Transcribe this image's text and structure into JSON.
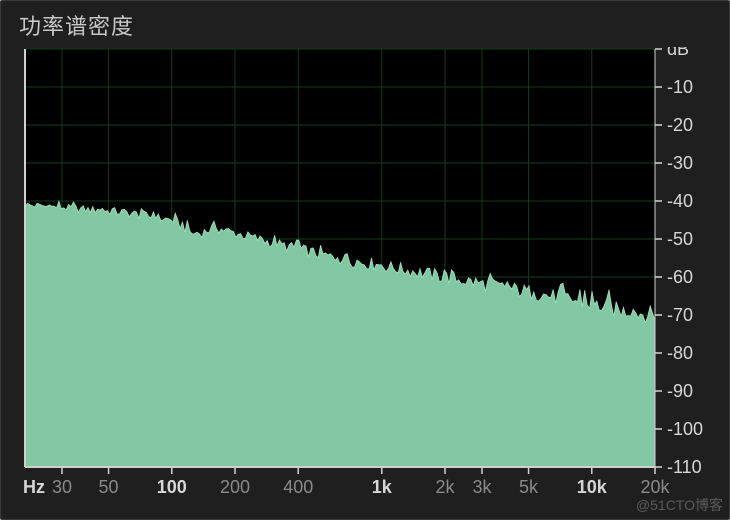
{
  "panel": {
    "title": "功率谱密度",
    "watermark": "@51CTO博客",
    "background_color": "#1f1f1f",
    "border_color": "#3a3a3a",
    "title_color": "#c8c8c8",
    "title_fontsize": 22
  },
  "chart": {
    "type": "power-spectral-density",
    "plot_background": "#000000",
    "outer_background": "#1f1f1f",
    "grid_color": "#0f3d1f",
    "grid_width": 1,
    "axis_line_color": "#d0d0d0",
    "series_fill_color": "#83c8a4",
    "series_line_color": "#9fe0bc",
    "tick_label_color": "#8a8a8a",
    "tick_label_major_color": "#d6d6d6",
    "tick_fontsize": 18,
    "x": {
      "unit_label": "Hz",
      "scale": "log",
      "min_hz": 20,
      "max_hz": 20000,
      "ticks": [
        {
          "hz": 30,
          "label": "30",
          "major": false
        },
        {
          "hz": 50,
          "label": "50",
          "major": false
        },
        {
          "hz": 100,
          "label": "100",
          "major": true
        },
        {
          "hz": 200,
          "label": "200",
          "major": false
        },
        {
          "hz": 400,
          "label": "400",
          "major": false
        },
        {
          "hz": 1000,
          "label": "1k",
          "major": true
        },
        {
          "hz": 2000,
          "label": "2k",
          "major": false
        },
        {
          "hz": 3000,
          "label": "3k",
          "major": false
        },
        {
          "hz": 5000,
          "label": "5k",
          "major": false
        },
        {
          "hz": 10000,
          "label": "10k",
          "major": true
        },
        {
          "hz": 20000,
          "label": "20k",
          "major": false
        }
      ]
    },
    "y": {
      "unit_label": "dB",
      "scale": "linear",
      "min_db": -110,
      "max_db": 0,
      "ticks": [
        {
          "db": 0,
          "label": "dB"
        },
        {
          "db": -10,
          "label": "-10"
        },
        {
          "db": -20,
          "label": "-20"
        },
        {
          "db": -30,
          "label": "-30"
        },
        {
          "db": -40,
          "label": "-40"
        },
        {
          "db": -50,
          "label": "-50"
        },
        {
          "db": -60,
          "label": "-60"
        },
        {
          "db": -70,
          "label": "-70"
        },
        {
          "db": -80,
          "label": "-80"
        },
        {
          "db": -90,
          "label": "-90"
        },
        {
          "db": -100,
          "label": "-100"
        },
        {
          "db": -110,
          "label": "-110"
        }
      ]
    },
    "spectrum": {
      "n_bins": 260,
      "envelope_points_hz_db": [
        [
          20,
          -41
        ],
        [
          60,
          -43
        ],
        [
          100,
          -45
        ],
        [
          130,
          -49
        ],
        [
          160,
          -47
        ],
        [
          300,
          -51
        ],
        [
          600,
          -55
        ],
        [
          1000,
          -57
        ],
        [
          2000,
          -60
        ],
        [
          4000,
          -63
        ],
        [
          8000,
          -66
        ],
        [
          14000,
          -69
        ],
        [
          20000,
          -70
        ]
      ],
      "noise_amplitude_db": 1.8,
      "bottom_db": -110
    }
  }
}
